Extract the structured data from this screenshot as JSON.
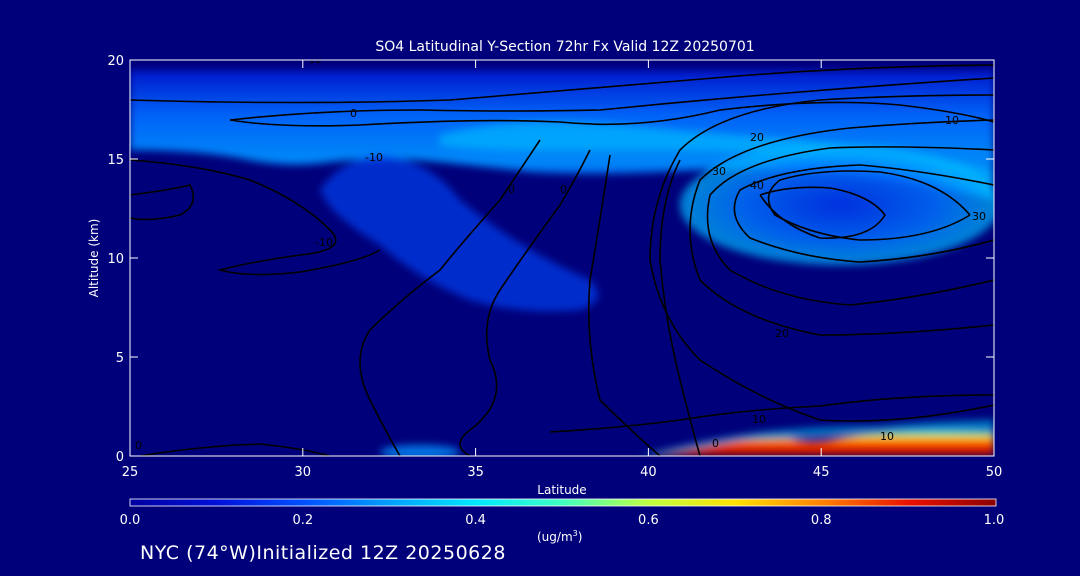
{
  "chart_data": {
    "type": "heatmap",
    "title": "SO4 Latitudinal Y-Section 72hr  Fx Valid 12Z 20250701",
    "xlabel": "Latitude",
    "ylabel": "Altitude (km)",
    "xlim": [
      25,
      50
    ],
    "ylim": [
      0,
      20
    ],
    "xticks": [
      "25",
      "30",
      "35",
      "40",
      "45",
      "50"
    ],
    "yticks": [
      "0",
      "5",
      "10",
      "15",
      "20"
    ],
    "colorbar": {
      "ticks": [
        "0.0",
        "0.2",
        "0.4",
        "0.6",
        "0.8",
        "1.0"
      ],
      "min": 0.0,
      "max": 1.0,
      "unit_label": "(ug/m",
      "unit_sup": "3",
      "unit_end": ")"
    },
    "background_color": "#00007a",
    "concentration_features": [
      {
        "name": "upper-layer",
        "lat": [
          25,
          50
        ],
        "alt": [
          14.5,
          19.5
        ],
        "value": 0.3
      },
      {
        "name": "plume-tongue",
        "lat": [
          32,
          41
        ],
        "alt": [
          7.5,
          15
        ],
        "value": 0.18
      },
      {
        "name": "jet-core-blob",
        "lat": [
          42,
          49
        ],
        "alt": [
          11,
          15
        ],
        "value": 0.28
      },
      {
        "name": "surface-layer",
        "lat": [
          40.5,
          50
        ],
        "alt": [
          0,
          1.2
        ],
        "value": 1.0
      },
      {
        "name": "surface-patch",
        "lat": [
          33,
          35.5
        ],
        "alt": [
          0,
          0.5
        ],
        "value": 0.35
      }
    ],
    "contour_labels": [
      "-10",
      "0",
      "-10",
      "0",
      "0",
      "-10",
      "0",
      "10",
      "20",
      "30",
      "40",
      "20",
      "30",
      "10",
      "10",
      "0"
    ]
  },
  "footer_text": "NYC (74°W)Initialized 12Z 20250628"
}
